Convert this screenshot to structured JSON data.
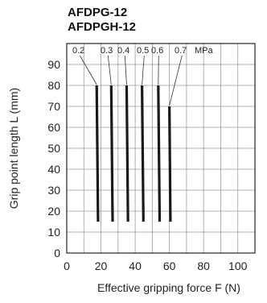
{
  "chart_data": {
    "type": "line",
    "title_lines": [
      "AFDPG-12",
      "AFDPGH-12"
    ],
    "xlabel": "Effective gripping force  F (N)",
    "ylabel": "Grip point length  L (mm)",
    "xlim": [
      0,
      110
    ],
    "ylim": [
      0,
      100
    ],
    "xticks": [
      0,
      20,
      40,
      60,
      80,
      100
    ],
    "yticks": [
      0,
      10,
      20,
      30,
      40,
      50,
      60,
      70,
      80,
      90
    ],
    "grid": true,
    "unit_label": "MPa",
    "series": [
      {
        "name": "0.2",
        "points": [
          [
            17.5,
            80
          ],
          [
            18.3,
            15
          ]
        ]
      },
      {
        "name": "0.3",
        "points": [
          [
            26.0,
            80
          ],
          [
            26.8,
            15
          ]
        ]
      },
      {
        "name": "0.4",
        "points": [
          [
            35.0,
            80
          ],
          [
            35.8,
            15
          ]
        ]
      },
      {
        "name": "0.5",
        "points": [
          [
            44.0,
            80
          ],
          [
            44.8,
            15
          ]
        ]
      },
      {
        "name": "0.6",
        "points": [
          [
            53.5,
            80
          ],
          [
            54.3,
            15
          ]
        ]
      },
      {
        "name": "0.7",
        "points": [
          [
            60.0,
            70
          ],
          [
            60.6,
            15
          ]
        ]
      }
    ]
  }
}
